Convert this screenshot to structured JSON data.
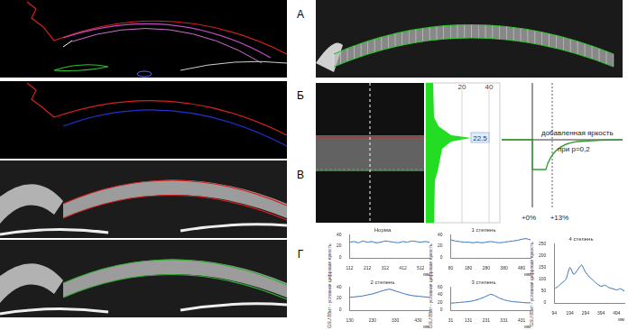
{
  "panels": {
    "labels": [
      "А",
      "Б",
      "В",
      "Г"
    ]
  },
  "profile": {
    "axis_labels": [
      "20",
      "40"
    ],
    "value_label": "22.5"
  },
  "schematic": {
    "title": "добавленная яркость",
    "subtitle": "при p=0,2",
    "x_labels": [
      "+0%",
      "+13%"
    ]
  },
  "y_axis_label": "GSU 8Bит - условная цифровая яркость",
  "chart_data": [
    {
      "type": "line",
      "title": "Норма",
      "xlabel": "мм",
      "color": "#2e6fb5",
      "grid": false,
      "x": [
        112,
        137,
        162,
        187,
        212,
        237,
        262,
        287,
        312,
        337,
        362,
        387,
        412,
        437,
        462,
        487,
        512,
        537,
        562
      ],
      "values": [
        27,
        28,
        26,
        29,
        27,
        28,
        26,
        27,
        29,
        28,
        27,
        26,
        28,
        27,
        29,
        28,
        27,
        28,
        27
      ],
      "xlim": [
        112,
        562
      ],
      "xticks": [
        112,
        212,
        312,
        412,
        512
      ],
      "ylim": [
        0,
        40
      ],
      "yticks": [
        0,
        20,
        40
      ]
    },
    {
      "type": "line",
      "title": "1 степень",
      "xlabel": "мм",
      "color": "#2e6fb5",
      "grid": false,
      "x": [
        80,
        105,
        130,
        155,
        180,
        205,
        230,
        255,
        280,
        305,
        330,
        355,
        380,
        405,
        430,
        455,
        480,
        505,
        530
      ],
      "values": [
        31,
        29,
        28,
        27,
        27,
        26,
        27,
        26,
        27,
        28,
        27,
        26,
        27,
        28,
        29,
        30,
        32,
        33,
        31
      ],
      "xlim": [
        80,
        530
      ],
      "xticks": [
        80,
        180,
        280,
        380,
        480
      ],
      "ylim": [
        0,
        40
      ],
      "yticks": [
        0,
        20,
        40
      ]
    },
    {
      "type": "line",
      "title": "2 степень",
      "xlabel": "мм",
      "color": "#2e6fb5",
      "grid": false,
      "x": [
        130,
        155,
        180,
        205,
        230,
        255,
        280,
        305,
        330,
        355,
        380,
        405,
        430,
        455,
        480
      ],
      "values": [
        22,
        23,
        24,
        26,
        28,
        31,
        34,
        36,
        33,
        30,
        27,
        25,
        24,
        23,
        22
      ],
      "xlim": [
        130,
        480
      ],
      "xticks": [
        130,
        230,
        330,
        430
      ],
      "ylim": [
        0,
        40
      ],
      "yticks": [
        0,
        20,
        40
      ]
    },
    {
      "type": "line",
      "title": "3 степень",
      "xlabel": "мм",
      "color": "#2e6fb5",
      "grid": false,
      "x": [
        31,
        56,
        81,
        106,
        131,
        156,
        181,
        206,
        231,
        256,
        281,
        306,
        331,
        356,
        381,
        406,
        431,
        456,
        481
      ],
      "values": [
        18,
        19,
        20,
        21,
        22,
        24,
        27,
        31,
        36,
        41,
        37,
        31,
        27,
        24,
        22,
        21,
        20,
        19,
        19
      ],
      "xlim": [
        31,
        481
      ],
      "xticks": [
        31,
        131,
        231,
        331,
        431
      ],
      "ylim": [
        0,
        60
      ],
      "yticks": [
        0,
        20,
        40,
        60
      ]
    },
    {
      "type": "line",
      "title": "4 степень",
      "xlabel": "мм",
      "color": "#2e6fb5",
      "grid": false,
      "x": [
        94,
        119,
        144,
        169,
        194,
        219,
        244,
        269,
        294,
        319,
        344,
        369,
        394,
        419,
        444,
        469,
        494,
        519,
        544
      ],
      "values": [
        60,
        70,
        85,
        100,
        150,
        120,
        140,
        160,
        130,
        110,
        95,
        80,
        70,
        75,
        65,
        60,
        55,
        60,
        50
      ],
      "xlim": [
        94,
        544
      ],
      "xticks": [
        94,
        194,
        294,
        394,
        494
      ],
      "ylim": [
        0,
        250
      ],
      "yticks": [
        0,
        50,
        100,
        150,
        200,
        250
      ]
    }
  ]
}
